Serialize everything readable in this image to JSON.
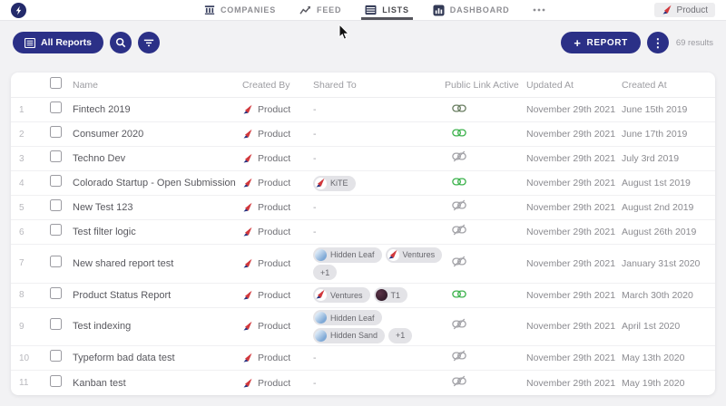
{
  "nav": {
    "tabs": [
      {
        "label": "COMPANIES",
        "icon": "companies-icon",
        "active": false
      },
      {
        "label": "FEED",
        "icon": "feed-icon",
        "active": false
      },
      {
        "label": "LISTS",
        "icon": "lists-icon",
        "active": true
      },
      {
        "label": "DASHBOARD",
        "icon": "dashboard-icon",
        "active": false
      },
      {
        "label": "",
        "icon": "more-icon",
        "active": false
      }
    ],
    "account_chip": {
      "label": "Product",
      "icon": "dart-logo-icon"
    }
  },
  "toolbar": {
    "all_reports_label": "All Reports",
    "plus": "+",
    "report_label": "REPORT",
    "results_text": "69 results"
  },
  "table": {
    "columns": [
      "Name",
      "Created By",
      "Shared To",
      "Public Link Active",
      "Updated At",
      "Created At"
    ],
    "empty_shared": "-",
    "rows": [
      {
        "num": "1",
        "name": "Fintech 2019",
        "created_by": "Product",
        "shared": [],
        "public_link": "active-muted",
        "updated_at": "November 29th 2021",
        "created_at": "June 15th 2019"
      },
      {
        "num": "2",
        "name": "Consumer 2020",
        "created_by": "Product",
        "shared": [],
        "public_link": "active",
        "updated_at": "November 29th 2021",
        "created_at": "June 17th 2019"
      },
      {
        "num": "3",
        "name": "Techno Dev",
        "created_by": "Product",
        "shared": [],
        "public_link": "inactive",
        "updated_at": "November 29th 2021",
        "created_at": "July 3rd 2019"
      },
      {
        "num": "4",
        "name": "Colorado Startup - Open Submission",
        "created_by": "Product",
        "shared": [
          [
            {
              "label": "KiTE",
              "icon": "dart"
            }
          ]
        ],
        "public_link": "active",
        "updated_at": "November 29th 2021",
        "created_at": "August 1st 2019"
      },
      {
        "num": "5",
        "name": "New Test 123",
        "created_by": "Product",
        "shared": [],
        "public_link": "inactive",
        "updated_at": "November 29th 2021",
        "created_at": "August 2nd 2019"
      },
      {
        "num": "6",
        "name": "Test filter logic",
        "created_by": "Product",
        "shared": [],
        "public_link": "inactive",
        "updated_at": "November 29th 2021",
        "created_at": "August 26th 2019"
      },
      {
        "num": "7",
        "name": "New shared report test",
        "created_by": "Product",
        "shared": [
          [
            {
              "label": "Hidden Leaf",
              "icon": "avatar-blue"
            },
            {
              "label": "Ventures",
              "icon": "dart"
            }
          ],
          [
            {
              "label": "+1",
              "icon": "none"
            }
          ]
        ],
        "public_link": "inactive",
        "updated_at": "November 29th 2021",
        "created_at": "January 31st 2020"
      },
      {
        "num": "8",
        "name": "Product Status Report",
        "created_by": "Product",
        "shared": [
          [
            {
              "label": "Ventures",
              "icon": "dart"
            },
            {
              "label": "T1",
              "icon": "avatar-dark"
            }
          ]
        ],
        "public_link": "active",
        "updated_at": "November 29th 2021",
        "created_at": "March 30th 2020"
      },
      {
        "num": "9",
        "name": "Test indexing",
        "created_by": "Product",
        "shared": [
          [
            {
              "label": "Hidden Leaf",
              "icon": "avatar-blue"
            }
          ],
          [
            {
              "label": "Hidden Sand",
              "icon": "avatar-blue"
            },
            {
              "label": "+1",
              "icon": "none"
            }
          ]
        ],
        "public_link": "inactive",
        "updated_at": "November 29th 2021",
        "created_at": "April 1st 2020"
      },
      {
        "num": "10",
        "name": "Typeform bad data test",
        "created_by": "Product",
        "shared": [],
        "public_link": "inactive",
        "updated_at": "November 29th 2021",
        "created_at": "May 13th 2020"
      },
      {
        "num": "11",
        "name": "Kanban test",
        "created_by": "Product",
        "shared": [],
        "public_link": "inactive",
        "updated_at": "November 29th 2021",
        "created_at": "May 19th 2020"
      }
    ]
  },
  "colors": {
    "primary": "#2b3087",
    "link_active": "#3fb34f",
    "link_active_muted": "#6b7f63",
    "link_inactive": "#a4a4a9",
    "badge_bg": "#e3e3e7",
    "dart_red": "#d2383c",
    "dart_blue": "#273380"
  }
}
